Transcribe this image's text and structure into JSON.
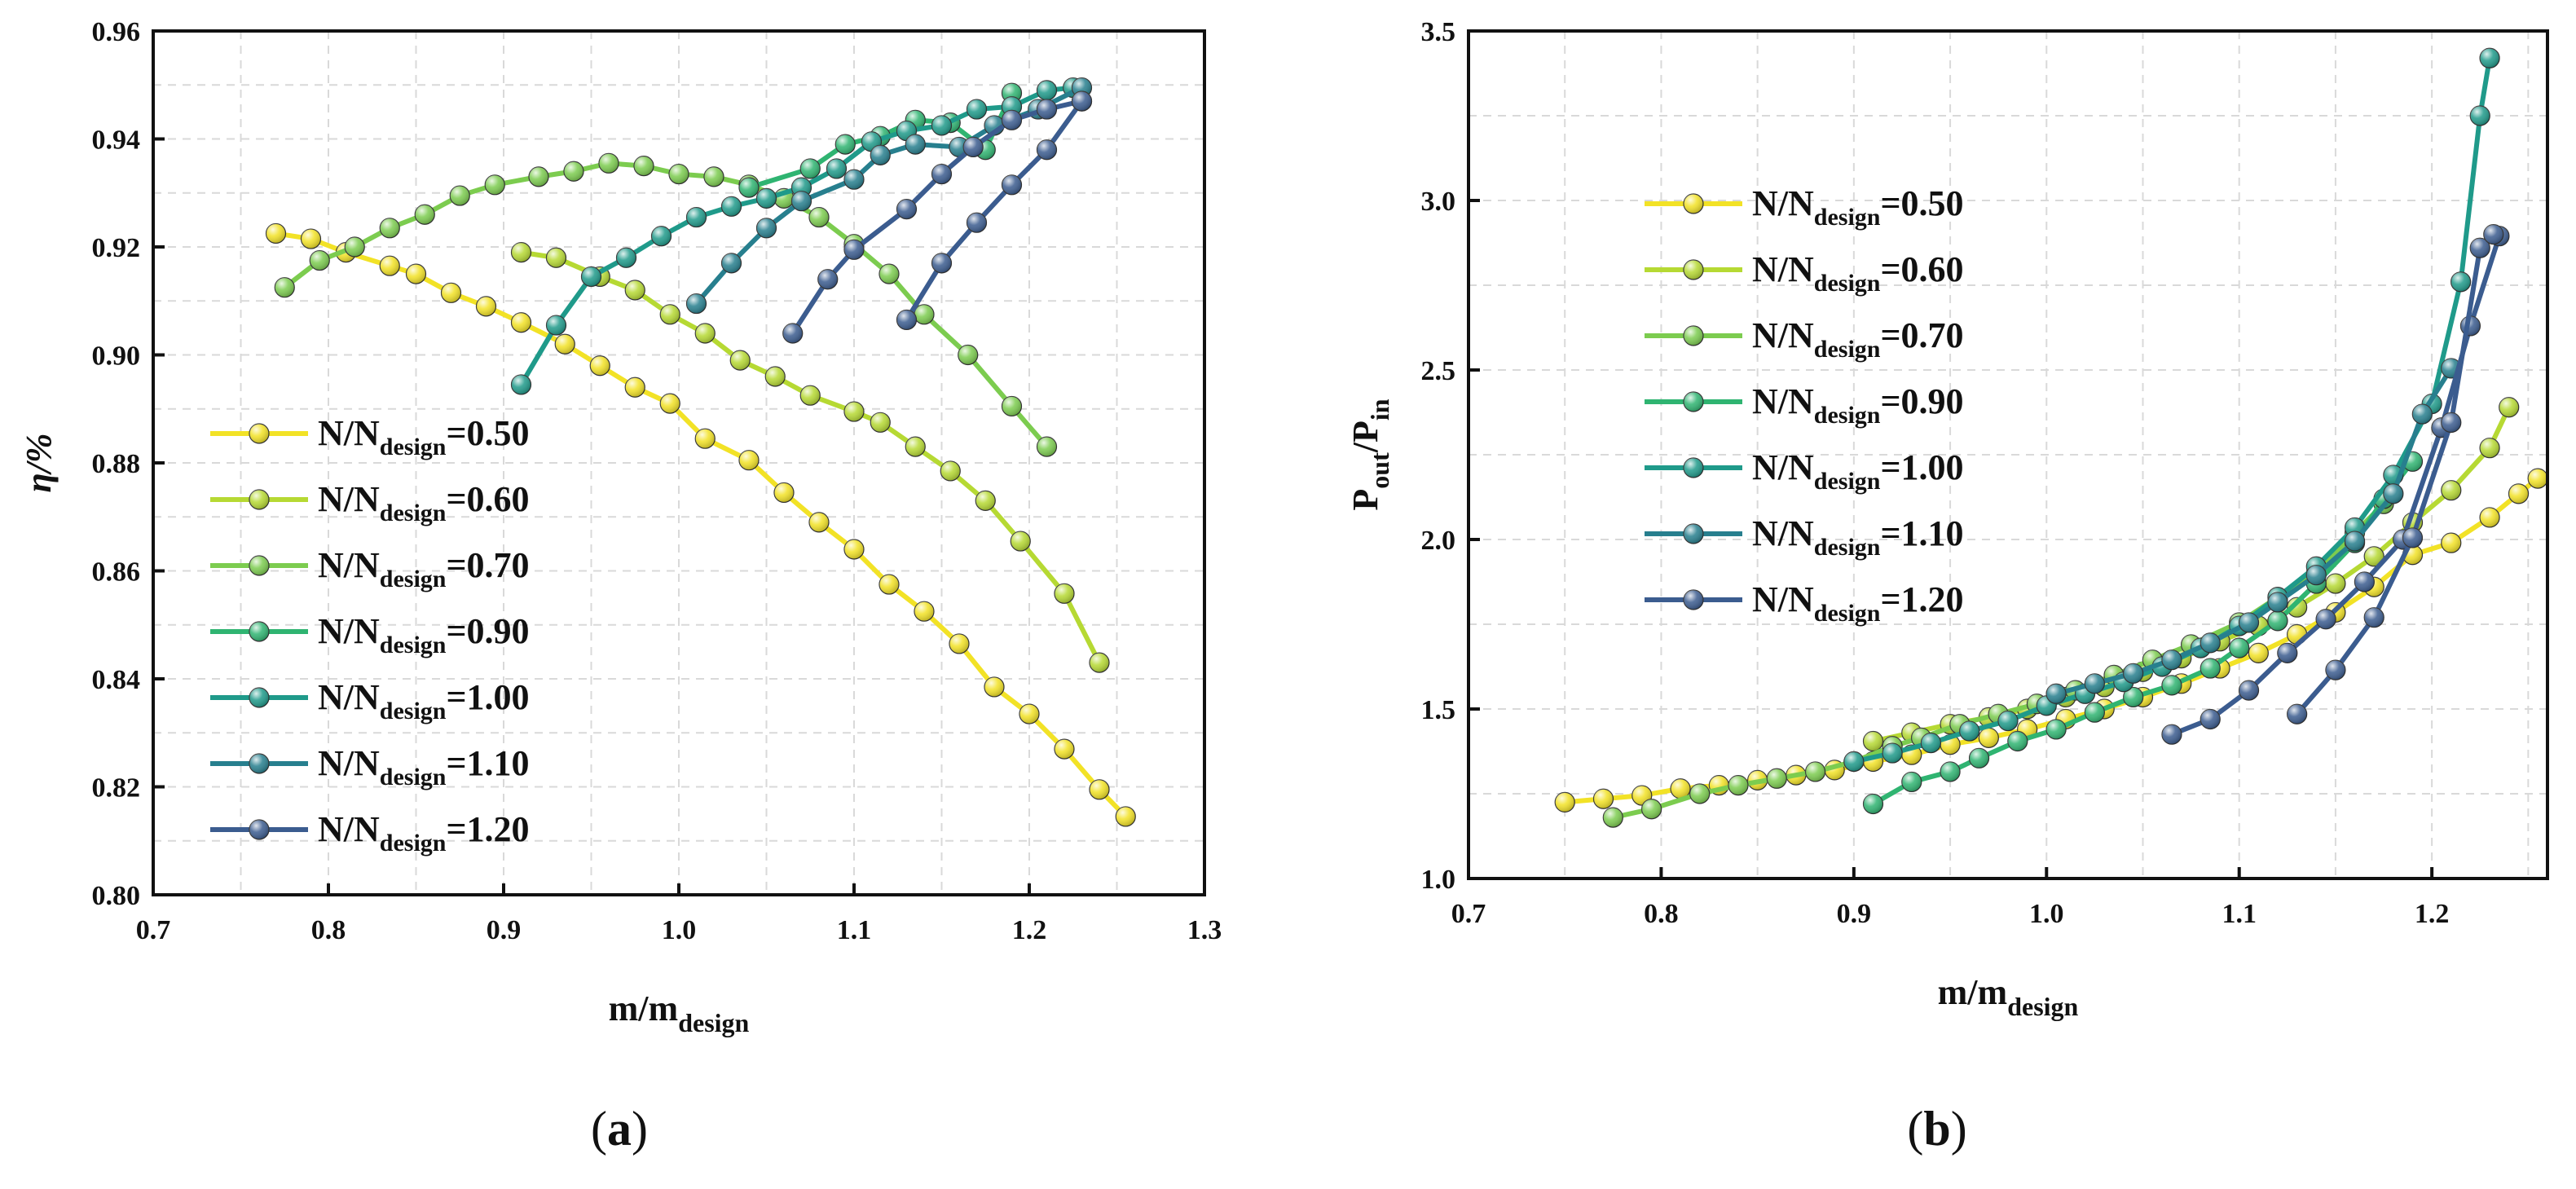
{
  "chart_data": [
    {
      "panel_label": "(a)",
      "type": "line",
      "xlabel": {
        "main": "m/m",
        "sub": "design"
      },
      "ylabel": {
        "main": "η/%"
      },
      "xlim": [
        0.7,
        1.3
      ],
      "ylim": [
        0.8,
        0.96
      ],
      "xticks": [
        0.7,
        0.8,
        0.9,
        1.0,
        1.1,
        1.2,
        1.3
      ],
      "xtick_labels": [
        "0.7",
        "0.8",
        "0.9",
        "1.0",
        "1.1",
        "1.2",
        "1.3"
      ],
      "yticks": [
        0.8,
        0.82,
        0.84,
        0.86,
        0.88,
        0.9,
        0.92,
        0.94,
        0.96
      ],
      "ytick_labels": [
        "0.80",
        "0.82",
        "0.84",
        "0.86",
        "0.88",
        "0.90",
        "0.92",
        "0.94",
        "0.96"
      ],
      "grid": true,
      "legend_position": "lower-left",
      "series": [
        {
          "name_main": "N/N",
          "name_sub": "design",
          "name_value": "=0.50",
          "color": "#f2e226",
          "x": [
            0.77,
            0.79,
            0.81,
            0.835,
            0.85,
            0.87,
            0.89,
            0.91,
            0.935,
            0.955,
            0.975,
            0.995,
            1.015,
            1.04,
            1.06,
            1.08,
            1.1,
            1.12,
            1.14,
            1.16,
            1.18,
            1.2,
            1.22,
            1.24,
            1.255
          ],
          "y": [
            0.9225,
            0.9215,
            0.919,
            0.9165,
            0.915,
            0.9115,
            0.909,
            0.906,
            0.902,
            0.898,
            0.894,
            0.891,
            0.8845,
            0.8805,
            0.8745,
            0.869,
            0.864,
            0.8575,
            0.8525,
            0.8465,
            0.8385,
            0.8335,
            0.827,
            0.8195,
            0.8145
          ]
        },
        {
          "name_main": "N/N",
          "name_sub": "design",
          "name_value": "=0.60",
          "color": "#b6d933",
          "x": [
            0.91,
            0.93,
            0.955,
            0.975,
            0.995,
            1.015,
            1.035,
            1.055,
            1.075,
            1.1,
            1.115,
            1.135,
            1.155,
            1.175,
            1.195,
            1.22,
            1.24
          ],
          "y": [
            0.919,
            0.918,
            0.9145,
            0.912,
            0.9075,
            0.904,
            0.899,
            0.896,
            0.8925,
            0.8895,
            0.8875,
            0.883,
            0.8785,
            0.873,
            0.8655,
            0.8558,
            0.843
          ]
        },
        {
          "name_main": "N/N",
          "name_sub": "design",
          "name_value": "=0.70",
          "color": "#7ccc4f",
          "x": [
            0.775,
            0.795,
            0.815,
            0.835,
            0.855,
            0.875,
            0.895,
            0.92,
            0.94,
            0.96,
            0.98,
            1.0,
            1.02,
            1.04,
            1.06,
            1.08,
            1.1,
            1.12,
            1.14,
            1.165,
            1.19,
            1.21
          ],
          "y": [
            0.9125,
            0.9175,
            0.92,
            0.9235,
            0.926,
            0.9295,
            0.9315,
            0.933,
            0.934,
            0.9355,
            0.935,
            0.9335,
            0.933,
            0.9315,
            0.929,
            0.9255,
            0.9205,
            0.915,
            0.9075,
            0.9,
            0.8905,
            0.883
          ]
        },
        {
          "name_main": "N/N",
          "name_sub": "design",
          "name_value": "=0.90",
          "color": "#2fb471",
          "x": [
            1.04,
            1.075,
            1.095,
            1.115,
            1.135,
            1.155,
            1.175,
            1.19
          ],
          "y": [
            0.931,
            0.9345,
            0.939,
            0.9405,
            0.9435,
            0.943,
            0.938,
            0.9485
          ]
        },
        {
          "name_main": "N/N",
          "name_sub": "design",
          "name_value": "=1.00",
          "color": "#1f9a8a",
          "x": [
            0.91,
            0.93,
            0.95,
            0.97,
            0.99,
            1.01,
            1.03,
            1.05,
            1.07,
            1.09,
            1.11,
            1.13,
            1.15,
            1.17,
            1.19,
            1.21,
            1.225
          ],
          "y": [
            0.8945,
            0.9055,
            0.9145,
            0.918,
            0.922,
            0.9255,
            0.9275,
            0.929,
            0.931,
            0.9345,
            0.9395,
            0.9415,
            0.9425,
            0.9455,
            0.946,
            0.949,
            0.9495
          ]
        },
        {
          "name_main": "N/N",
          "name_sub": "design",
          "name_value": "=1.10",
          "color": "#277f8e",
          "x": [
            1.01,
            1.03,
            1.05,
            1.07,
            1.1,
            1.115,
            1.135,
            1.16,
            1.18,
            1.205,
            1.23
          ],
          "y": [
            0.9095,
            0.917,
            0.9235,
            0.9285,
            0.9325,
            0.937,
            0.939,
            0.9385,
            0.9425,
            0.9455,
            0.9495
          ]
        },
        {
          "name_main": "N/N",
          "name_sub": "design",
          "name_value": "=1.20",
          "color": "#3b5c8f",
          "x": [
            1.065,
            1.085,
            1.1,
            1.13,
            1.15,
            1.168,
            1.19,
            1.21,
            1.23
          ],
          "y": [
            0.904,
            0.914,
            0.9195,
            0.927,
            0.9335,
            0.9385,
            0.9435,
            0.9455,
            0.947
          ]
        },
        {
          "name_main": "",
          "name_sub": "",
          "name_value": "",
          "color": "#3b5c8f",
          "hidden_in_legend": true,
          "x": [
            1.13,
            1.15,
            1.17,
            1.19,
            1.21,
            1.23
          ],
          "y": [
            0.9065,
            0.917,
            0.9245,
            0.9315,
            0.938,
            0.947
          ]
        }
      ]
    },
    {
      "panel_label": "(b)",
      "type": "line",
      "xlabel": {
        "main": "m/m",
        "sub": "design"
      },
      "ylabel": {
        "main": "P",
        "sub1": "out",
        "mid": "/P",
        "sub2": "in"
      },
      "xlim": [
        0.7,
        1.26
      ],
      "ylim": [
        1.0,
        3.5
      ],
      "xticks": [
        0.7,
        0.8,
        0.9,
        1.0,
        1.1,
        1.2
      ],
      "xtick_labels": [
        "0.7",
        "0.8",
        "0.9",
        "1.0",
        "1.1",
        "1.2"
      ],
      "yticks": [
        1.0,
        1.5,
        2.0,
        2.5,
        3.0,
        3.5
      ],
      "ytick_labels": [
        "1.0",
        "1.5",
        "2.0",
        "2.5",
        "3.0",
        "3.5"
      ],
      "grid": true,
      "legend_position": "upper-left",
      "series": [
        {
          "name_main": "N/N",
          "name_sub": "design",
          "name_value": "=0.50",
          "color": "#f2e226",
          "x": [
            0.75,
            0.77,
            0.79,
            0.81,
            0.83,
            0.85,
            0.87,
            0.89,
            0.91,
            0.93,
            0.95,
            0.97,
            0.99,
            1.01,
            1.03,
            1.05,
            1.07,
            1.09,
            1.11,
            1.13,
            1.15,
            1.17,
            1.19,
            1.21,
            1.23,
            1.245,
            1.255
          ],
          "y": [
            1.225,
            1.235,
            1.245,
            1.265,
            1.275,
            1.29,
            1.305,
            1.32,
            1.345,
            1.365,
            1.395,
            1.415,
            1.44,
            1.47,
            1.5,
            1.535,
            1.575,
            1.62,
            1.665,
            1.72,
            1.785,
            1.86,
            1.955,
            1.99,
            2.065,
            2.135,
            2.18
          ]
        },
        {
          "name_main": "N/N",
          "name_sub": "design",
          "name_value": "=0.60",
          "color": "#b6d933",
          "x": [
            0.91,
            0.93,
            0.95,
            0.97,
            0.99,
            1.01,
            1.03,
            1.05,
            1.07,
            1.09,
            1.11,
            1.13,
            1.15,
            1.17,
            1.19,
            1.21,
            1.23,
            1.24
          ],
          "y": [
            1.405,
            1.43,
            1.455,
            1.475,
            1.5,
            1.535,
            1.565,
            1.61,
            1.65,
            1.7,
            1.745,
            1.8,
            1.87,
            1.95,
            2.05,
            2.145,
            2.27,
            2.39
          ]
        },
        {
          "name_main": "N/N",
          "name_sub": "design",
          "name_value": "=0.70",
          "color": "#7ccc4f",
          "x": [
            0.775,
            0.795,
            0.82,
            0.84,
            0.86,
            0.88,
            0.9,
            0.92,
            0.935,
            0.955,
            0.975,
            0.995,
            1.015,
            1.035,
            1.055,
            1.075,
            1.1,
            1.12,
            1.14,
            1.16,
            1.175
          ],
          "y": [
            1.18,
            1.205,
            1.25,
            1.275,
            1.295,
            1.315,
            1.345,
            1.39,
            1.415,
            1.455,
            1.485,
            1.515,
            1.555,
            1.6,
            1.645,
            1.69,
            1.755,
            1.83,
            1.9,
            2.02,
            2.105
          ]
        },
        {
          "name_main": "N/N",
          "name_sub": "design",
          "name_value": "=0.90",
          "color": "#2fb471",
          "x": [
            0.91,
            0.93,
            0.95,
            0.965,
            0.985,
            1.005,
            1.025,
            1.045,
            1.065,
            1.085,
            1.1,
            1.12,
            1.14,
            1.16,
            1.175,
            1.19
          ],
          "y": [
            1.22,
            1.285,
            1.315,
            1.355,
            1.405,
            1.44,
            1.49,
            1.535,
            1.57,
            1.62,
            1.68,
            1.76,
            1.87,
            1.99,
            2.12,
            2.23
          ]
        },
        {
          "name_main": "N/N",
          "name_sub": "design",
          "name_value": "=1.00",
          "color": "#1f9a8a",
          "x": [
            0.9,
            0.92,
            0.94,
            0.96,
            0.98,
            1.0,
            1.02,
            1.04,
            1.06,
            1.08,
            1.1,
            1.12,
            1.14,
            1.16,
            1.18,
            1.2,
            1.215,
            1.225,
            1.23
          ],
          "y": [
            1.345,
            1.37,
            1.4,
            1.435,
            1.465,
            1.51,
            1.545,
            1.58,
            1.625,
            1.68,
            1.745,
            1.83,
            1.92,
            2.035,
            2.19,
            2.4,
            2.76,
            3.25,
            3.42
          ]
        },
        {
          "name_main": "N/N",
          "name_sub": "design",
          "name_value": "=1.10",
          "color": "#277f8e",
          "x": [
            1.005,
            1.025,
            1.045,
            1.065,
            1.085,
            1.105,
            1.12,
            1.14,
            1.16,
            1.18,
            1.195,
            1.21
          ],
          "y": [
            1.545,
            1.575,
            1.605,
            1.645,
            1.695,
            1.755,
            1.815,
            1.895,
            1.995,
            2.135,
            2.37,
            2.505
          ]
        },
        {
          "name_main": "N/N",
          "name_sub": "design",
          "name_value": "=1.20",
          "color": "#3b5c8f",
          "x": [
            1.065,
            1.085,
            1.105,
            1.125,
            1.145,
            1.165,
            1.185,
            1.205,
            1.22,
            1.235
          ],
          "y": [
            1.425,
            1.47,
            1.555,
            1.665,
            1.765,
            1.875,
            2.0,
            2.33,
            2.63,
            2.895
          ]
        },
        {
          "name_main": "",
          "name_sub": "",
          "name_value": "",
          "color": "#3b5c8f",
          "hidden_in_legend": true,
          "x": [
            1.13,
            1.15,
            1.17,
            1.19,
            1.21,
            1.225,
            1.232
          ],
          "y": [
            1.485,
            1.615,
            1.77,
            2.005,
            2.345,
            2.86,
            2.9
          ]
        }
      ]
    }
  ]
}
